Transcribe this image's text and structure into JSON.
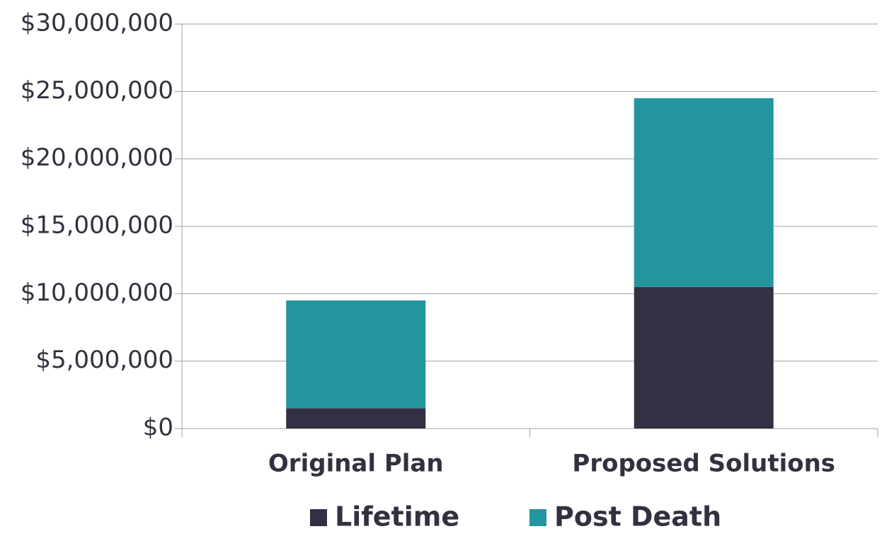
{
  "chart_data": {
    "type": "stacked-bar",
    "categories": [
      "Original Plan",
      "Proposed Solutions"
    ],
    "series": [
      {
        "name": "Lifetime",
        "color": "#333044",
        "values": [
          1500000,
          10500000
        ]
      },
      {
        "name": "Post Death",
        "color": "#23959e",
        "values": [
          8000000,
          14000000
        ]
      }
    ],
    "ylim": [
      0,
      30000000
    ],
    "yticks": [
      {
        "value": 0,
        "label": "$0"
      },
      {
        "value": 5000000,
        "label": "$5,000,000"
      },
      {
        "value": 10000000,
        "label": "$10,000,000"
      },
      {
        "value": 15000000,
        "label": "$15,000,000"
      },
      {
        "value": 20000000,
        "label": "$20,000,000"
      },
      {
        "value": 25000000,
        "label": "$25,000,000"
      },
      {
        "value": 30000000,
        "label": "$30,000,000"
      }
    ],
    "grid": true
  }
}
